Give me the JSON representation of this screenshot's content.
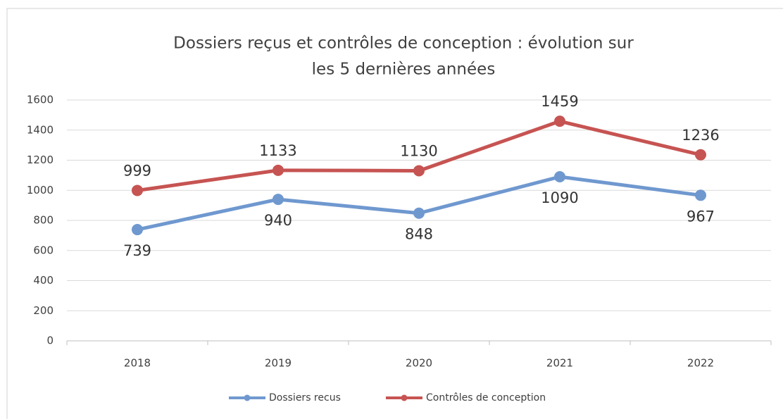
{
  "chart_data": {
    "type": "line",
    "title": [
      "Dossiers reçus et contrôles de conception : évolution sur",
      "les 5 dernières années"
    ],
    "categories": [
      "2018",
      "2019",
      "2020",
      "2021",
      "2022"
    ],
    "series": [
      {
        "name": "Dossiers recus",
        "color": "#6f98cf",
        "values": [
          739,
          940,
          848,
          1090,
          967
        ]
      },
      {
        "name": "Contrôles de conception",
        "color": "#c65452",
        "values": [
          999,
          1133,
          1130,
          1459,
          1236
        ]
      }
    ],
    "ylim": [
      0,
      1600
    ],
    "yticks": [
      0,
      200,
      400,
      600,
      800,
      1000,
      1200,
      1400,
      1600
    ],
    "grid": true,
    "legend": "bottom"
  }
}
